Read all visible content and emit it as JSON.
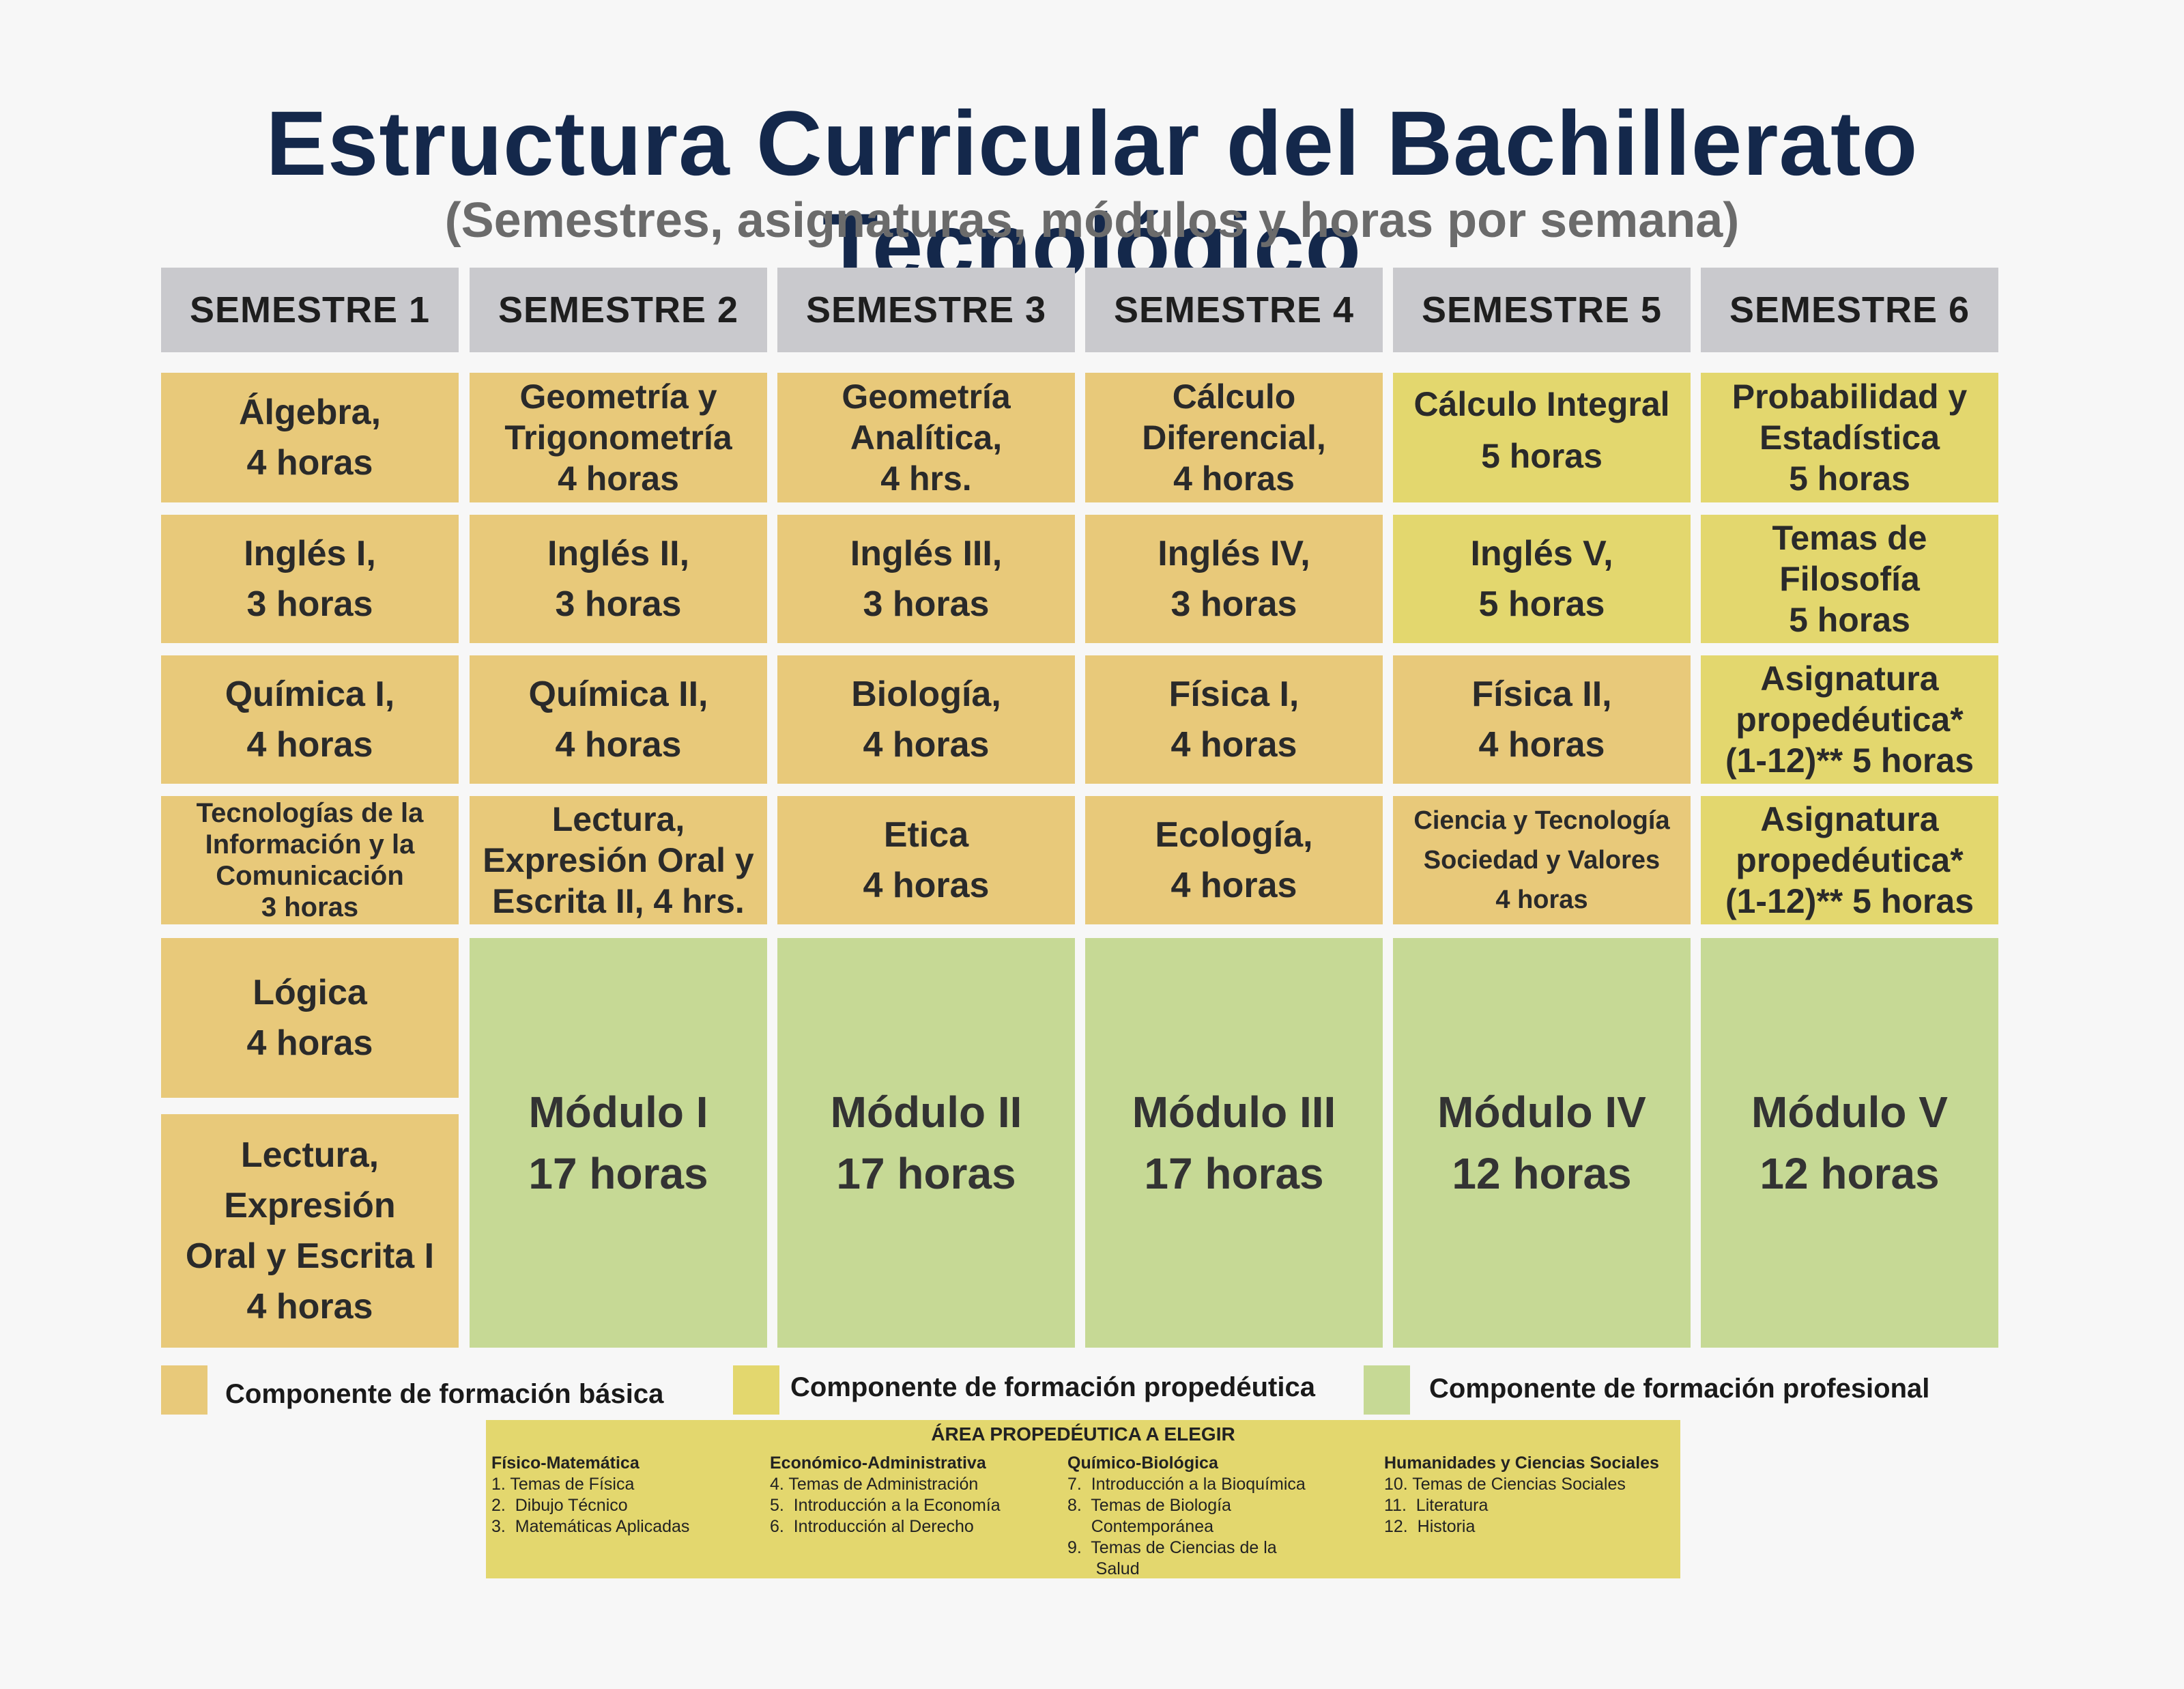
{
  "title": "Estructura Curricular del Bachillerato Tecnológico",
  "subtitle": "(Semestres, asignaturas, módulos y horas por semana)",
  "semesters": [
    "SEMESTRE 1",
    "SEMESTRE 2",
    "SEMESTRE 3",
    "SEMESTRE 4",
    "SEMESTRE 5",
    "SEMESTRE 6"
  ],
  "rows": {
    "r1": [
      {
        "lines": [
          "Álgebra,",
          "4 horas"
        ]
      },
      {
        "lines": [
          "Geometría y",
          "Trigonometría",
          "4 horas"
        ]
      },
      {
        "lines": [
          "Geometría",
          "Analítica,",
          "4 hrs."
        ]
      },
      {
        "lines": [
          "Cálculo",
          "Diferencial,",
          "4 horas"
        ]
      },
      {
        "lines": [
          "Cálculo Integral",
          "5 horas"
        ]
      },
      {
        "lines": [
          "Probabilidad y",
          "Estadística",
          "5 horas"
        ]
      }
    ],
    "r2": [
      {
        "lines": [
          "Inglés I,",
          "3 horas"
        ]
      },
      {
        "lines": [
          "Inglés II,",
          "3 horas"
        ]
      },
      {
        "lines": [
          "Inglés III,",
          "3 horas"
        ]
      },
      {
        "lines": [
          "Inglés IV,",
          "3 horas"
        ]
      },
      {
        "lines": [
          "Inglés V,",
          "5 horas"
        ]
      },
      {
        "lines": [
          "Temas de",
          "Filosofía",
          "5 horas"
        ]
      }
    ],
    "r3": [
      {
        "lines": [
          "Química I,",
          "4 horas"
        ]
      },
      {
        "lines": [
          "Química II,",
          "4 horas"
        ]
      },
      {
        "lines": [
          "Biología,",
          "4 horas"
        ]
      },
      {
        "lines": [
          "Física I,",
          "4 horas"
        ]
      },
      {
        "lines": [
          "Física II,",
          "4 horas"
        ]
      },
      {
        "lines": [
          "Asignatura",
          "propedéutica*",
          "(1-12)** 5 horas"
        ]
      }
    ],
    "r4": [
      {
        "lines": [
          "Tecnologías de la",
          "Información y la",
          "Comunicación",
          "3 horas"
        ]
      },
      {
        "lines": [
          "Lectura,",
          "Expresión Oral y",
          "Escrita II, 4 hrs."
        ]
      },
      {
        "lines": [
          "Etica",
          "4 horas"
        ]
      },
      {
        "lines": [
          "Ecología,",
          "4 horas"
        ]
      },
      {
        "lines": [
          "Ciencia y Tecnología",
          "Sociedad y Valores",
          "4 horas"
        ]
      },
      {
        "lines": [
          "Asignatura",
          "propedéutica*",
          "(1-12)** 5 horas"
        ]
      }
    ]
  },
  "logica": {
    "lines": [
      "Lógica",
      "4 horas"
    ]
  },
  "lectura1": {
    "lines": [
      "Lectura,",
      "Expresión",
      "Oral y Escrita I",
      "4 horas"
    ]
  },
  "modules": [
    {
      "lines": [
        "Módulo I",
        "17 horas"
      ]
    },
    {
      "lines": [
        "Módulo II",
        "17 horas"
      ]
    },
    {
      "lines": [
        "Módulo III",
        "17 horas"
      ]
    },
    {
      "lines": [
        "Módulo IV",
        "12 horas"
      ]
    },
    {
      "lines": [
        "Módulo V",
        "12 horas"
      ]
    }
  ],
  "legend": [
    {
      "label": "Componente de formación básica",
      "color": "#e8c97a"
    },
    {
      "label": "Componente de formación propedéutica",
      "color": "#e3d76e"
    },
    {
      "label": "Componente de formación profesional",
      "color": "#c6d995"
    }
  ],
  "area": {
    "title": "ÁREA PROPEDÉUTICA A ELEGIR",
    "columns": [
      {
        "heading": "Físico-Matemática",
        "items": [
          "1. Temas de Física",
          "2.  Dibujo Técnico",
          "3.  Matemáticas Aplicadas"
        ]
      },
      {
        "heading": "Económico-Administrativa",
        "items": [
          "4. Temas de Administración",
          "5.  Introducción a la Economía",
          "6.  Introducción al Derecho"
        ]
      },
      {
        "heading": "Químico-Biológica",
        "items": [
          "7.  Introducción a la Bioquímica",
          "8.  Temas de Biología",
          "     Contemporánea",
          "9.  Temas de Ciencias de la",
          "      Salud"
        ]
      },
      {
        "heading": "Humanidades y Ciencias Sociales",
        "items": [
          "10. Temas de Ciencias Sociales",
          "11.  Literatura",
          "12.  Historia"
        ]
      }
    ]
  },
  "colors": {
    "basic": "#e8c97a",
    "propedeutic": "#e3d76e",
    "professional": "#c6d995",
    "header": "#c9c9cd",
    "title": "#14284b"
  }
}
